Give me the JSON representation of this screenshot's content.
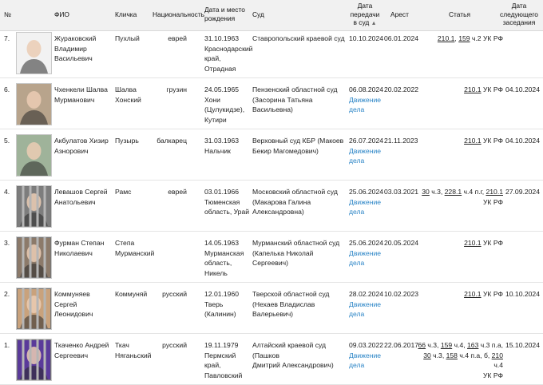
{
  "headers": {
    "num": "№",
    "fio": "ФИО",
    "nick": "Кличка",
    "nat": "Национальность",
    "birth": [
      "Дата и место",
      "рождения"
    ],
    "court": "Суд",
    "transfer": [
      "Дата",
      "передачи",
      "в суд"
    ],
    "sort_icon": "▲",
    "arrest": "Арест",
    "article": "Статья",
    "next": [
      "Дата",
      "следующего",
      "заседания"
    ]
  },
  "case_link_label": [
    "Движение",
    "дела"
  ],
  "rows": [
    {
      "num": "7.",
      "fio": [
        "Жураковский",
        "Владимир",
        "Васильевич"
      ],
      "nick": [
        "Пухлый"
      ],
      "nat": "еврей",
      "birth": [
        "31.10.1963",
        "Краснодарский",
        "край, Отрадная"
      ],
      "court": [
        "Ставропольский краевой суд"
      ],
      "transfer": "10.10.2024",
      "arrest": "06.01.2024",
      "article": [
        "210.1, 159 ч.2 УК РФ"
      ],
      "next": "",
      "has_case_link": false,
      "photo_bg": "#f2f2f2",
      "photo_icon": "portrait-photo-icon"
    },
    {
      "num": "6.",
      "fio": [
        "Чхенкели Шалва",
        "Мурманович"
      ],
      "nick": [
        "Шалва",
        "Хонский"
      ],
      "nat": "грузин",
      "birth": [
        "24.05.1965",
        "Хони",
        "(Цулукидзе),",
        "Кутири"
      ],
      "court": [
        "Пензенский областной суд",
        "(Засорина Татьяна Васильевна)"
      ],
      "transfer": "06.08.2024",
      "arrest": "20.02.2022",
      "article": [
        "210.1 УК РФ"
      ],
      "next": "04.10.2024",
      "has_case_link": true,
      "photo_bg": "#b8a48c",
      "photo_icon": "portrait-photo-icon"
    },
    {
      "num": "5.",
      "fio": [
        "Акбулатов Хизир",
        "Азнорович"
      ],
      "nick": [
        "Пузырь"
      ],
      "nat": "балкарец",
      "birth": [
        "31.03.1963",
        "Нальчик"
      ],
      "court": [
        "Верховный суд КБР (Макоев",
        "Бекир Магомедович)"
      ],
      "transfer": "26.07.2024",
      "arrest": "21.11.2023",
      "article": [
        "210.1 УК РФ"
      ],
      "next": "04.10.2024",
      "has_case_link": true,
      "photo_bg": "#9fb39a",
      "photo_icon": "portrait-photo-icon"
    },
    {
      "num": "4.",
      "fio": [
        "Левашов Сергей",
        "Анатольевич"
      ],
      "nick": [
        "Рамс"
      ],
      "nat": "еврей",
      "birth": [
        "03.01.1966",
        "Тюменская",
        "область, Урай"
      ],
      "court": [
        "Московский областной суд",
        "(Макарова Галина",
        "Александровна)"
      ],
      "transfer": "25.06.2024",
      "arrest": "03.03.2021",
      "article": [
        "30 ч.3, 228.1 ч.4 п.г, 210.1",
        "УК РФ"
      ],
      "next": "27.09.2024",
      "has_case_link": true,
      "photo_bg": "#7d7d7d",
      "photo_icon": "prison-bars-photo-icon"
    },
    {
      "num": "3.",
      "fio": [
        "Фурман Степан",
        "Николаевич"
      ],
      "nick": [
        "Степа",
        "Мурманский"
      ],
      "nat": "",
      "birth": [
        "14.05.1963",
        "Мурманская",
        "область,",
        "Никель"
      ],
      "court": [
        "Мурманский областной суд",
        "(Капелька Николай Сергеевич)"
      ],
      "transfer": "25.06.2024",
      "arrest": "20.05.2024",
      "article": [
        "210.1 УК РФ"
      ],
      "next": "",
      "has_case_link": true,
      "photo_bg": "#8c7a6a",
      "photo_icon": "prison-bars-photo-icon"
    },
    {
      "num": "2.",
      "fio": [
        "Коммуняев Сергей",
        "Леонидович"
      ],
      "nick": [
        "Коммуняй"
      ],
      "nat": "русский",
      "birth": [
        "12.01.1960",
        "Тверь",
        "(Калинин)"
      ],
      "court": [
        "Тверской областной суд",
        "(Нехаев Владислав Валерьевич)"
      ],
      "transfer": "28.02.2024",
      "arrest": "10.02.2023",
      "article": [
        "210.1 УК РФ"
      ],
      "next": "10.10.2024",
      "has_case_link": true,
      "photo_bg": "#c9a27c",
      "photo_icon": "prison-bars-photo-icon"
    },
    {
      "num": "1.",
      "fio": [
        "Ткаченко Андрей",
        "Сергеевич"
      ],
      "nick": [
        "Ткач",
        "Няганьский"
      ],
      "nat": "русский",
      "birth": [
        "19.11.1979",
        "Пермский край,",
        "Павловский"
      ],
      "court": [
        "Алтайский краевой суд (Пашков",
        "Дмитрий Александрович)"
      ],
      "transfer": "09.03.2022",
      "arrest": "22.06.2017",
      "article": [
        "66 ч.3, 159 ч.4, 163 ч.3 п.а,",
        "30 ч.3, 158 ч.4 п.а, б, 210 ч.4",
        "УК РФ"
      ],
      "next": "15.10.2024",
      "has_case_link": true,
      "photo_bg": "#5a3a9a",
      "photo_icon": "prison-bars-photo-icon"
    }
  ]
}
